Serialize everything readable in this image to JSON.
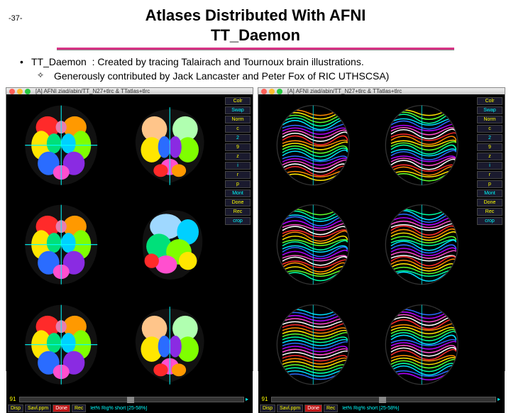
{
  "page_number": "-37-",
  "title_line1": "Atlases Distributed With AFNI",
  "title_line2": "TT_Daemon",
  "bullet": {
    "label": "TT_Daemon",
    "text": ": Created by tracing Talairach and Tournoux brain illustrations."
  },
  "sub_bullet": "Generously contributed by Jack Lancaster and Peter Fox of RIC UTHSCSA)",
  "window_title": "[A] AFNI ziad/abin/TT_N27+tlrc & TTatlas+tlrc",
  "sidebar_buttons": [
    "Colr",
    "Swap",
    "Norm",
    "c",
    "2",
    "9",
    "z",
    "i",
    "r",
    "p",
    "Mont",
    "Done",
    "Rec",
    "crop"
  ],
  "slider_value": "91",
  "bottom_buttons": [
    "Disp",
    "Savl.ppm",
    "Done",
    "Rec"
  ],
  "status_text": "let% Rig% short [25-58%]",
  "left_style": "filled",
  "right_style": "outline",
  "brain_palette": {
    "filled": [
      "#ff2a2a",
      "#ff9900",
      "#ffe600",
      "#7fff00",
      "#00e07a",
      "#00d0ff",
      "#2a6cff",
      "#8a2be2",
      "#ff4fcf",
      "#e67fb0",
      "#ffc58a",
      "#b0ffb0",
      "#9fd8ff",
      "#c9b3ff"
    ],
    "outline": [
      "#ff2a2a",
      "#ff8a00",
      "#ffe600",
      "#5fff2a",
      "#00ffa0",
      "#00e0ff",
      "#2a6cff",
      "#b000ff",
      "#ff4fcf",
      "#ffffff"
    ]
  }
}
